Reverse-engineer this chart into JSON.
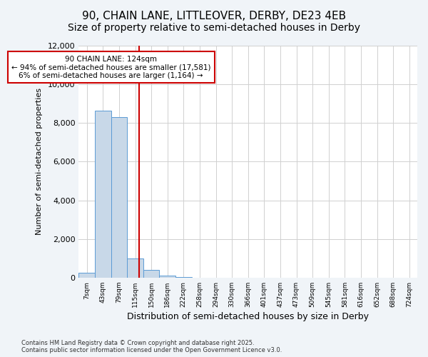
{
  "title": "90, CHAIN LANE, LITTLEOVER, DERBY, DE23 4EB",
  "subtitle": "Size of property relative to semi-detached houses in Derby",
  "xlabel": "Distribution of semi-detached houses by size in Derby",
  "ylabel": "Number of semi-detached properties",
  "footer_line1": "Contains HM Land Registry data © Crown copyright and database right 2025.",
  "footer_line2": "Contains public sector information licensed under the Open Government Licence v3.0.",
  "bins": [
    "7sqm",
    "43sqm",
    "79sqm",
    "115sqm",
    "150sqm",
    "186sqm",
    "222sqm",
    "258sqm",
    "294sqm",
    "330sqm",
    "366sqm",
    "401sqm",
    "437sqm",
    "473sqm",
    "509sqm",
    "545sqm",
    "581sqm",
    "616sqm",
    "652sqm",
    "688sqm",
    "724sqm"
  ],
  "values": [
    250,
    8650,
    8300,
    1000,
    390,
    95,
    45,
    10,
    0,
    0,
    0,
    0,
    0,
    0,
    0,
    0,
    0,
    0,
    0,
    0,
    0
  ],
  "bar_color": "#c8d8e8",
  "bar_edge_color": "#5b9bd5",
  "grid_color": "#d0d0d0",
  "annotation_text": "90 CHAIN LANE: 124sqm\n← 94% of semi-detached houses are smaller (17,581)\n6% of semi-detached houses are larger (1,164) →",
  "annotation_box_color": "#ffffff",
  "annotation_box_edge_color": "#cc0000",
  "vline_color": "#cc0000",
  "property_sqm": 124,
  "bin_centers": [
    7,
    43,
    79,
    115,
    150,
    186,
    222,
    258,
    294,
    330,
    366,
    401,
    437,
    473,
    509,
    545,
    581,
    616,
    652,
    688,
    724
  ],
  "ylim": [
    0,
    12000
  ],
  "bg_color": "#f0f4f8",
  "plot_bg_color": "#ffffff",
  "title_fontsize": 11,
  "subtitle_fontsize": 10
}
